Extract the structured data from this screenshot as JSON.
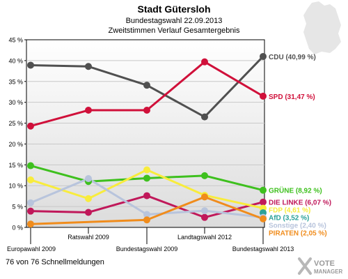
{
  "header": {
    "title": "Stadt Gütersloh",
    "subtitle1": "Bundestagswahl 22.09.2013",
    "subtitle2": "Zweitstimmen Verlauf Gesamtergebnis"
  },
  "footer": {
    "status": "76 von 76 Schnellmeldungen",
    "brand_line1": "VOTE",
    "brand_line2": "MANAGER"
  },
  "chart_data": {
    "type": "line",
    "x": [
      "Europawahl 2009",
      "Ratswahl 2009",
      "Bundestagswahl 2009",
      "Landtagswahl 2012",
      "Bundestagswahl 2013"
    ],
    "ylim": [
      0,
      45
    ],
    "yticks": [
      0,
      5,
      10,
      15,
      20,
      25,
      30,
      35,
      40,
      45
    ],
    "ytick_labels": [
      "0 %",
      "5 %",
      "10 %",
      "15 %",
      "20 %",
      "25 %",
      "30 %",
      "35 %",
      "40 %",
      "45 %"
    ],
    "grid": true,
    "series": [
      {
        "name": "CDU",
        "label": "CDU (40,99 %)",
        "color": "#505050",
        "values": [
          38.9,
          38.6,
          34.1,
          26.5,
          40.99
        ]
      },
      {
        "name": "SPD",
        "label": "SPD (31,47 %)",
        "color": "#d0103a",
        "values": [
          24.3,
          28.1,
          28.1,
          39.7,
          31.47
        ]
      },
      {
        "name": "GRÜNE",
        "label": "GRÜNE (8,92 %)",
        "color": "#3ec01e",
        "values": [
          14.8,
          11.0,
          11.8,
          12.4,
          8.92
        ]
      },
      {
        "name": "DIE LINKE",
        "label": "DIE LINKE (6,07 %)",
        "color": "#c0185a",
        "values": [
          3.9,
          3.6,
          7.6,
          2.4,
          6.07
        ]
      },
      {
        "name": "FDP",
        "label": "FDP (4,61 %)",
        "color": "#f8ec3c",
        "values": [
          11.4,
          6.9,
          13.8,
          7.7,
          4.61
        ]
      },
      {
        "name": "AfD",
        "label": "AfD (3,52 %)",
        "color": "#2aa198",
        "values": [
          null,
          null,
          null,
          null,
          3.52
        ]
      },
      {
        "name": "Sonstige",
        "label": "Sonstige (2,40 %)",
        "color": "#b8c4dc",
        "values": [
          5.9,
          11.7,
          3.1,
          4.0,
          2.4
        ]
      },
      {
        "name": "PIRATEN",
        "label": "PIRATEN (2,05 %)",
        "color": "#f08c1c",
        "values": [
          0.8,
          null,
          1.8,
          7.3,
          2.05
        ]
      }
    ]
  }
}
